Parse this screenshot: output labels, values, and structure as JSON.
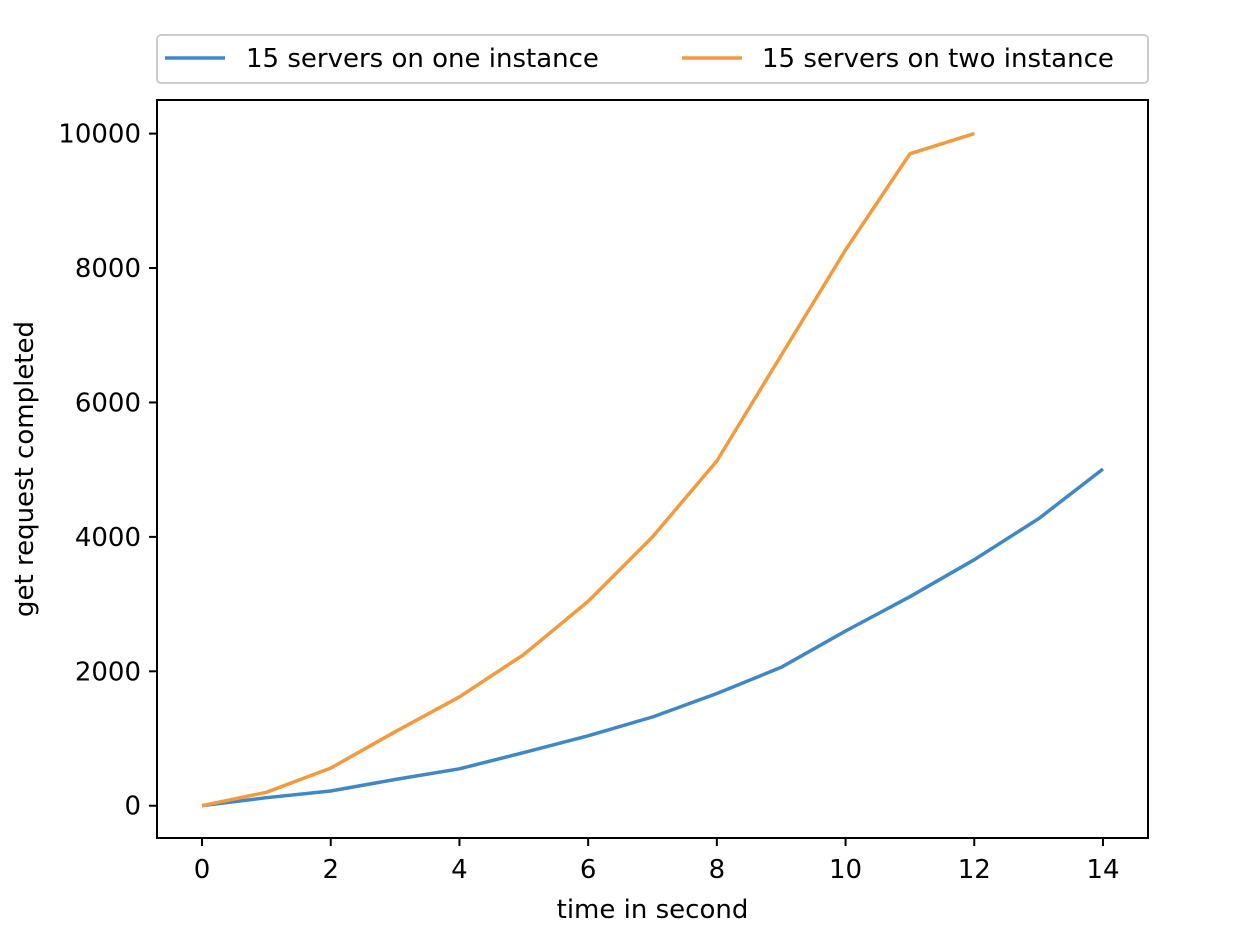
{
  "chart_data": {
    "type": "line",
    "xlabel": "time in second",
    "ylabel": "get request completed",
    "xlim": [
      -0.7,
      14.7
    ],
    "ylim": [
      -480,
      10500
    ],
    "xticks": [
      0,
      2,
      4,
      6,
      8,
      10,
      12,
      14
    ],
    "yticks": [
      0,
      2000,
      4000,
      6000,
      8000,
      10000
    ],
    "grid": false,
    "legend_position": "top-center (above plot)",
    "series": [
      {
        "name": "15 servers on one instance",
        "color": "#3f88c5",
        "x": [
          0,
          1,
          2,
          3,
          4,
          5,
          6,
          7,
          8,
          9,
          10,
          11,
          12,
          13,
          14
        ],
        "y": [
          0,
          120,
          220,
          390,
          550,
          790,
          1040,
          1320,
          1670,
          2060,
          2600,
          3110,
          3660,
          4270,
          5010
        ]
      },
      {
        "name": "15 servers on two instance",
        "color": "#f39a3c",
        "x": [
          0,
          1,
          2,
          3,
          4,
          5,
          6,
          7,
          8,
          9,
          10,
          11,
          12
        ],
        "y": [
          0,
          200,
          560,
          1100,
          1620,
          2250,
          3040,
          4000,
          5130,
          6700,
          8270,
          9700,
          10000
        ]
      }
    ]
  }
}
